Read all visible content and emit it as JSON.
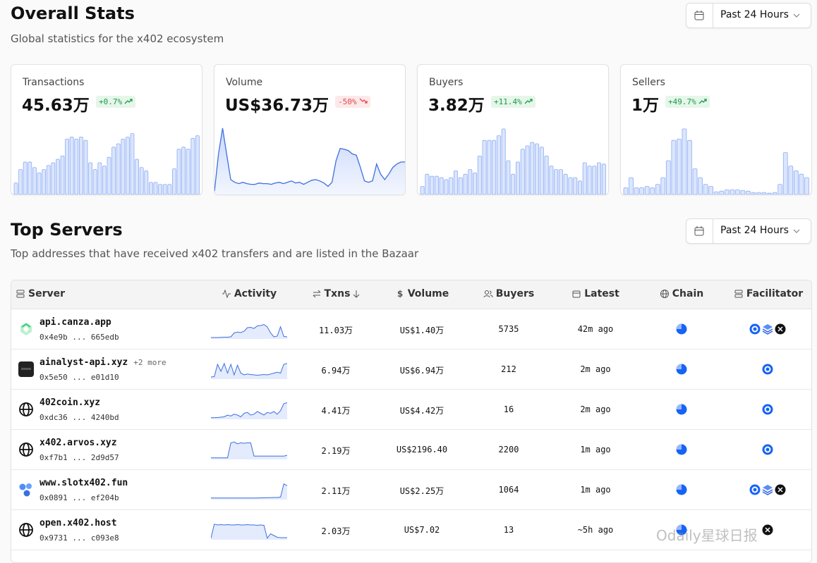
{
  "overview": {
    "title": "Overall Stats",
    "subtitle": "Global statistics for the x402 ecosystem",
    "range": "Past 24 Hours",
    "cards": [
      {
        "label": "Transactions",
        "value": "45.63万",
        "change": "+0.7%",
        "trend": "up",
        "type": "bar",
        "values": [
          17,
          37,
          48,
          48,
          40,
          32,
          37,
          43,
          47,
          52,
          57,
          82,
          85,
          82,
          85,
          80,
          47,
          37,
          47,
          42,
          55,
          70,
          75,
          82,
          85,
          90,
          52,
          40,
          35,
          18,
          18,
          15,
          15,
          15,
          38,
          67,
          70,
          67,
          83,
          87
        ]
      },
      {
        "label": "Volume",
        "value": "US$36.73万",
        "change": "-50%",
        "trend": "down",
        "type": "area",
        "values": [
          5,
          60,
          98,
          60,
          22,
          18,
          16,
          18,
          16,
          15,
          15,
          17,
          16,
          16,
          15,
          17,
          18,
          16,
          18,
          20,
          17,
          18,
          15,
          18,
          21,
          22,
          20,
          17,
          12,
          18,
          50,
          68,
          67,
          65,
          60,
          58,
          40,
          20,
          18,
          20,
          45,
          30,
          22,
          30,
          40,
          45,
          48,
          48
        ]
      },
      {
        "label": "Buyers",
        "value": "3.82万",
        "change": "+11.4%",
        "trend": "up",
        "type": "bar",
        "values": [
          12,
          30,
          27,
          27,
          25,
          22,
          25,
          35,
          25,
          30,
          37,
          32,
          57,
          80,
          80,
          80,
          87,
          97,
          50,
          30,
          48,
          67,
          72,
          77,
          75,
          70,
          57,
          42,
          37,
          37,
          30,
          25,
          25,
          20,
          47,
          42,
          42,
          47,
          45
        ]
      },
      {
        "label": "Sellers",
        "value": "1万",
        "change": "+49.7%",
        "trend": "up",
        "type": "bar",
        "values": [
          10,
          25,
          10,
          10,
          12,
          10,
          15,
          25,
          50,
          80,
          82,
          97,
          80,
          38,
          25,
          15,
          12,
          4,
          5,
          7,
          7,
          7,
          6,
          5,
          3,
          3,
          3,
          2,
          3,
          15,
          62,
          42,
          35,
          30,
          25
        ]
      }
    ]
  },
  "servers": {
    "title": "Top Servers",
    "subtitle": "Top addresses that have received x402 transfers and are listed in the Bazaar",
    "range": "Past 24 Hours",
    "columns": [
      "Server",
      "Activity",
      "Txns",
      "Volume",
      "Buyers",
      "Latest",
      "Chain",
      "Facilitator"
    ],
    "rows": [
      {
        "name": "api.canza.app",
        "address": "0x4e9b ... 665edb",
        "txns": "11.03万",
        "volume": "US$1.40万",
        "buyers": 5735,
        "latest": "42m ago",
        "activity": [
          4,
          4,
          4,
          5,
          6,
          6,
          8,
          30,
          35,
          32,
          40,
          60,
          62,
          55,
          70,
          72,
          78,
          65,
          30,
          8,
          12,
          65,
          10,
          8
        ]
      },
      {
        "name": "ainalyst-api.xyz",
        "extra": "+2 more",
        "address": "0x5e50 ... e01d10",
        "txns": "6.94万",
        "volume": "US$6.94万",
        "buyers": 212,
        "latest": "2m ago",
        "activity": [
          8,
          10,
          80,
          40,
          85,
          30,
          80,
          20,
          75,
          30,
          20,
          25,
          22,
          20,
          18,
          20,
          22,
          20,
          25,
          30,
          35,
          30,
          80,
          85
        ]
      },
      {
        "name": "402coin.xyz",
        "address": "0xdc36 ... 4240bd",
        "txns": "4.41万",
        "volume": "US$4.42万",
        "buyers": 16,
        "latest": "2m ago",
        "activity": [
          5,
          5,
          6,
          8,
          10,
          20,
          15,
          25,
          20,
          10,
          30,
          35,
          20,
          25,
          40,
          30,
          20,
          35,
          30,
          40,
          25,
          45,
          85,
          90
        ]
      },
      {
        "name": "x402.arvos.xyz",
        "address": "0xf7b1 ... 2d9d57",
        "txns": "2.19万",
        "volume": "US$2196.40",
        "buyers": 2200,
        "latest": "1m ago",
        "activity": [
          5,
          5,
          5,
          5,
          5,
          5,
          90,
          95,
          85,
          90,
          88,
          90,
          90,
          15,
          15,
          15,
          15,
          15,
          15,
          15,
          15,
          15,
          15,
          20
        ]
      },
      {
        "name": "www.slotx402.fun",
        "address": "0x0891 ... ef204b",
        "txns": "2.11万",
        "volume": "US$2.25万",
        "buyers": 1064,
        "latest": "1m ago",
        "activity": [
          5,
          5,
          5,
          5,
          5,
          5,
          5,
          5,
          5,
          5,
          5,
          5,
          5,
          5,
          5,
          6,
          6,
          7,
          7,
          8,
          8,
          10,
          85,
          75
        ]
      },
      {
        "name": "open.x402.host",
        "address": "0x9731 ... c093e8",
        "txns": "2.03万",
        "volume": "US$7.02",
        "buyers": 13,
        "latest": "~5h ago",
        "activity": [
          5,
          85,
          80,
          82,
          80,
          82,
          80,
          80,
          82,
          80,
          80,
          82,
          80,
          80,
          78,
          80,
          78,
          5,
          30,
          20,
          10,
          8,
          8,
          8
        ]
      }
    ]
  },
  "watermark": "Odaily星球日报"
}
